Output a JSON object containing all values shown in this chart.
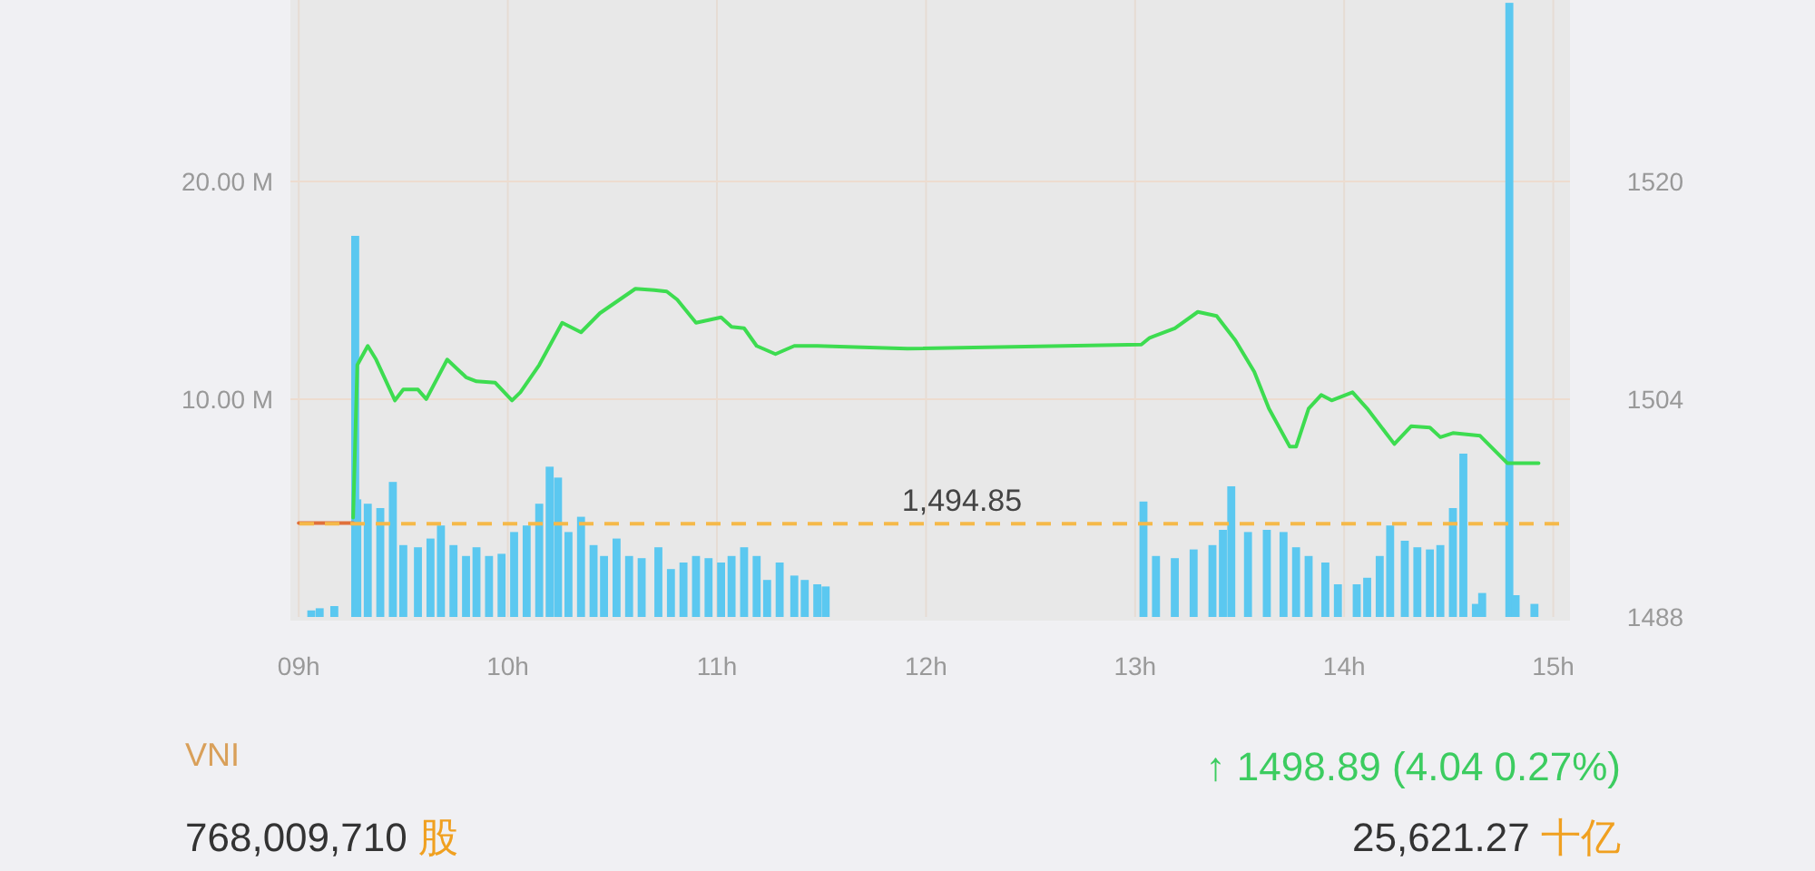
{
  "chart_data": {
    "type": "bar",
    "title": "VNI",
    "xlim": [
      8.96,
      15.08
    ],
    "xticks": [
      {
        "value": 9,
        "label": "09h"
      },
      {
        "value": 10,
        "label": "10h"
      },
      {
        "value": 11,
        "label": "11h"
      },
      {
        "value": 12,
        "label": "12h"
      },
      {
        "value": 13,
        "label": "13h"
      },
      {
        "value": 14,
        "label": "14h"
      },
      {
        "value": 15,
        "label": "15h"
      }
    ],
    "ylim": [
      0,
      28.33
    ],
    "yticks": [
      {
        "value": 10,
        "label": "10.00 M"
      },
      {
        "value": 20,
        "label": "20.00 M"
      }
    ],
    "y2lim": [
      1488,
      1533.3
    ],
    "y2ticks": [
      1488,
      1504,
      1520
    ],
    "grid": true,
    "series": [
      {
        "color": "#5bc8f0",
        "x": [
          9.06,
          9.1,
          9.17,
          9.27,
          9.28,
          9.33,
          9.39,
          9.45,
          9.5,
          9.57,
          9.63,
          9.68,
          9.74,
          9.8,
          9.85,
          9.91,
          9.97,
          10.03,
          10.09,
          10.15,
          10.2,
          10.24,
          10.29,
          10.35,
          10.41,
          10.46,
          10.52,
          10.58,
          10.64,
          10.72,
          10.78,
          10.84,
          10.9,
          10.96,
          11.02,
          11.07,
          11.13,
          11.19,
          11.24,
          11.3,
          11.37,
          11.42,
          11.48,
          11.52,
          13.04,
          13.1,
          13.19,
          13.28,
          13.37,
          13.42,
          13.46,
          13.54,
          13.63,
          13.71,
          13.77,
          13.83,
          13.91,
          13.97,
          14.06,
          14.11,
          14.17,
          14.22,
          14.29,
          14.35,
          14.41,
          14.46,
          14.52,
          14.57,
          14.63,
          14.66,
          14.79,
          14.82,
          14.91
        ],
        "values": [
          0.3,
          0.4,
          0.5,
          17.5,
          5.4,
          5.2,
          5,
          6.2,
          3.3,
          3.2,
          3.6,
          4.2,
          3.3,
          2.8,
          3.2,
          2.8,
          2.9,
          3.9,
          4.2,
          5.2,
          6.9,
          6.4,
          3.9,
          4.6,
          3.3,
          2.8,
          3.6,
          2.8,
          2.7,
          3.2,
          2.2,
          2.5,
          2.8,
          2.7,
          2.5,
          2.8,
          3.2,
          2.8,
          1.7,
          2.5,
          1.9,
          1.7,
          1.5,
          1.4,
          5.3,
          2.8,
          2.7,
          3.1,
          3.3,
          4,
          6,
          3.9,
          4,
          3.9,
          3.2,
          2.8,
          2.5,
          1.5,
          1.5,
          1.8,
          2.8,
          4.2,
          3.5,
          3.2,
          3.1,
          3.3,
          5,
          7.5,
          0.6,
          1.1,
          28.2,
          1,
          0.6
        ]
      },
      {
        "type": "line",
        "axis": "y2",
        "color": "#e0703a",
        "x": [
          9,
          9.26
        ],
        "values": [
          1494.9,
          1494.9
        ]
      },
      {
        "type": "line",
        "axis": "y2",
        "color": "#3ddc50",
        "x": [
          9.26,
          9.28,
          9.33,
          9.37,
          9.46,
          9.5,
          9.57,
          9.61,
          9.71,
          9.8,
          9.85,
          9.94,
          10.02,
          10.06,
          10.15,
          10.26,
          10.35,
          10.44,
          10.61,
          10.7,
          10.76,
          10.81,
          10.9,
          11.02,
          11.07,
          11.13,
          11.19,
          11.28,
          11.37,
          11.48,
          11.91,
          13.03,
          13.07,
          13.19,
          13.3,
          13.39,
          13.48,
          13.57,
          13.64,
          13.74,
          13.77,
          13.83,
          13.89,
          13.94,
          14.04,
          14.11,
          14.24,
          14.32,
          14.41,
          14.46,
          14.52,
          14.65,
          14.78,
          14.93
        ],
        "values": [
          1495.3,
          1506.5,
          1507.9,
          1506.9,
          1503.9,
          1504.7,
          1504.7,
          1504,
          1506.9,
          1505.6,
          1505.3,
          1505.2,
          1503.9,
          1504.5,
          1506.5,
          1509.6,
          1508.9,
          1510.3,
          1512.1,
          1512,
          1511.9,
          1511.3,
          1509.6,
          1510,
          1509.3,
          1509.2,
          1507.9,
          1507.3,
          1507.9,
          1507.9,
          1507.7,
          1508,
          1508.5,
          1509.2,
          1510.4,
          1510.1,
          1508.3,
          1506,
          1503.3,
          1500.5,
          1500.5,
          1503.3,
          1504.3,
          1503.9,
          1504.5,
          1503.3,
          1500.7,
          1502,
          1501.9,
          1501.2,
          1501.5,
          1501.3,
          1499.3,
          1499.3
        ]
      }
    ],
    "ref_lines": [
      {
        "axis": "y2",
        "value": 1494.85,
        "label": "1,494.85",
        "color": "#f5b94a",
        "line_style": "dashed"
      }
    ],
    "annotations": [
      "↑ 1498.89  (4.04  0.27%)",
      "768,009,710 股",
      "25,621.27 十亿"
    ]
  }
}
